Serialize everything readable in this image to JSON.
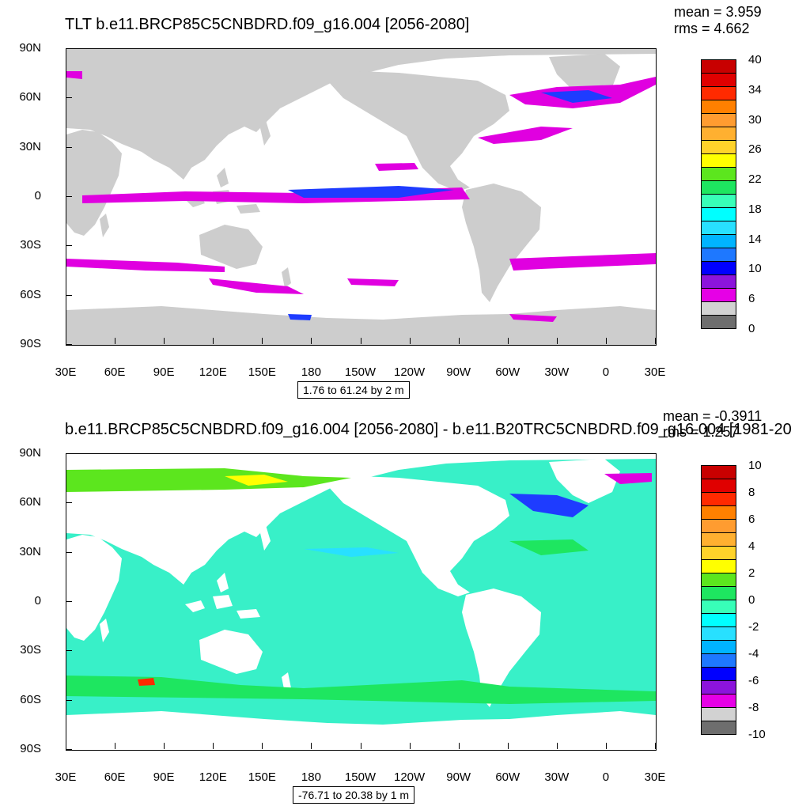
{
  "top": {
    "title": "TLT b.e11.BRCP85C5CNBDRD.f09_g16.004 [2056-2080]",
    "mean": "mean = 3.959",
    "rms": "rms = 4.662",
    "range": "1.76 to 61.24 by 2 m",
    "y_ticks": [
      "90N",
      "60N",
      "30N",
      "0",
      "30S",
      "60S",
      "90S"
    ],
    "x_ticks": [
      "30E",
      "60E",
      "90E",
      "120E",
      "150E",
      "180",
      "150W",
      "120W",
      "90W",
      "60W",
      "30W",
      "0",
      "30E"
    ],
    "colorbar_colors": [
      "#c80000",
      "#e00000",
      "#ff2a00",
      "#ff8000",
      "#ff9c30",
      "#ffb030",
      "#ffd32a",
      "#ffff00",
      "#5ce61e",
      "#1ee660",
      "#38ffb8",
      "#00ffff",
      "#28e0ff",
      "#00b4ff",
      "#1e78ff",
      "#0000ff",
      "#8c14dc",
      "#e600e6",
      "#d2d2d2",
      "#6e6e6e"
    ],
    "colorbar_labels": [
      "40",
      "34",
      "30",
      "26",
      "22",
      "18",
      "14",
      "10",
      "6",
      "0"
    ]
  },
  "bottom": {
    "title": "b.e11.BRCP85C5CNBDRD.f09_g16.004 [2056-2080] - b.e11.B20TRC5CNBDRD.f09_g16.004 [1981-20",
    "mean": "mean = -0.3911",
    "rms": "rms = 1.257",
    "range": "-76.71 to 20.38 by 1 m",
    "y_ticks": [
      "90N",
      "60N",
      "30N",
      "0",
      "30S",
      "60S",
      "90S"
    ],
    "x_ticks": [
      "30E",
      "60E",
      "90E",
      "120E",
      "150E",
      "180",
      "150W",
      "120W",
      "90W",
      "60W",
      "30W",
      "0",
      "30E"
    ],
    "colorbar_colors": [
      "#c80000",
      "#e00000",
      "#ff2a00",
      "#ff8000",
      "#ff9c30",
      "#ffb030",
      "#ffd32a",
      "#ffff00",
      "#5ce61e",
      "#1ee660",
      "#38ffb8",
      "#00ffff",
      "#28e0ff",
      "#00b4ff",
      "#1e78ff",
      "#0000ff",
      "#8c14dc",
      "#e600e6",
      "#d2d2d2",
      "#6e6e6e"
    ],
    "colorbar_labels": [
      "10",
      "8",
      "6",
      "4",
      "2",
      "0",
      "-2",
      "-4",
      "-6",
      "-8",
      "-10"
    ]
  },
  "colors": {
    "land_top": "#cdcdcd",
    "ocean_top": "#ffffff",
    "ocean_bottom": "#38f0c8",
    "land_bottom": "#ffffff",
    "anomaly_magenta": "#e000e0",
    "anomaly_blue": "#1e3cff"
  }
}
